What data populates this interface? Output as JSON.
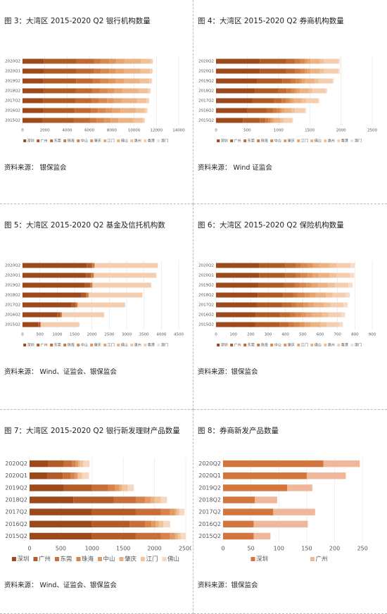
{
  "chart_data": [
    {
      "type": "bar",
      "title": "图 3：大湾区 2015-2020 Q2 银行机构数量",
      "source": "资料来源：  银保监会",
      "categories": [
        "2020Q2",
        "2020Q1",
        "2019Q2",
        "2018Q2",
        "2017Q2",
        "2016Q2",
        "2015Q2"
      ],
      "xlim": [
        0,
        14000
      ],
      "xticks": [
        0,
        2000,
        4000,
        6000,
        8000,
        10000,
        12000,
        14000
      ],
      "grid": true,
      "series": [
        {
          "name": "深圳",
          "color": "#9c4a1c",
          "values": [
            1900,
            1890,
            1880,
            1860,
            1850,
            1830,
            1800
          ]
        },
        {
          "name": "广州",
          "color": "#b05a26",
          "values": [
            2950,
            2940,
            2930,
            2900,
            2880,
            2850,
            2800
          ]
        },
        {
          "name": "东莞",
          "color": "#c06a32",
          "values": [
            1550,
            1540,
            1540,
            1520,
            1500,
            1480,
            1450
          ]
        },
        {
          "name": "珠海",
          "color": "#cc7a40",
          "values": [
            650,
            650,
            640,
            630,
            620,
            600,
            580
          ]
        },
        {
          "name": "中山",
          "color": "#d6884e",
          "values": [
            750,
            750,
            740,
            740,
            730,
            720,
            700
          ]
        },
        {
          "name": "肇庆",
          "color": "#de965e",
          "values": [
            600,
            600,
            600,
            590,
            580,
            570,
            560
          ]
        },
        {
          "name": "江门",
          "color": "#e5a470",
          "values": [
            750,
            750,
            750,
            740,
            730,
            720,
            700
          ]
        },
        {
          "name": "佛山",
          "color": "#ebb283",
          "values": [
            1450,
            1450,
            1440,
            1420,
            1400,
            1380,
            1350
          ]
        },
        {
          "name": "惠州",
          "color": "#f0c098",
          "values": [
            850,
            850,
            840,
            830,
            820,
            800,
            780
          ]
        },
        {
          "name": "香港",
          "color": "#f4ceb0",
          "values": [
            200,
            200,
            200,
            200,
            200,
            200,
            200
          ]
        },
        {
          "name": "澳门",
          "color": "#f8dccb",
          "values": [
            60,
            60,
            60,
            60,
            60,
            60,
            60
          ]
        }
      ]
    },
    {
      "type": "bar",
      "title": "图 4：大湾区 2015-2020 Q2 券商机构数量",
      "source": "资料来源：  Wind  证监会",
      "categories": [
        "2020Q2",
        "2020Q1",
        "2019Q2",
        "2018Q2",
        "2017Q2",
        "2016Q2",
        "2015Q2"
      ],
      "xlim": [
        0,
        2500
      ],
      "xticks": [
        0,
        500,
        1000,
        1500,
        2000,
        2500
      ],
      "grid": true,
      "series": [
        {
          "name": "深圳",
          "color": "#9c4a1c",
          "values": [
            700,
            700,
            660,
            620,
            580,
            500,
            430
          ]
        },
        {
          "name": "广州",
          "color": "#b05a26",
          "values": [
            420,
            420,
            400,
            380,
            350,
            310,
            270
          ]
        },
        {
          "name": "东莞",
          "color": "#c06a32",
          "values": [
            150,
            150,
            140,
            130,
            120,
            110,
            90
          ]
        },
        {
          "name": "珠海",
          "color": "#cc7a40",
          "values": [
            80,
            80,
            75,
            70,
            65,
            55,
            45
          ]
        },
        {
          "name": "中山",
          "color": "#d6884e",
          "values": [
            70,
            70,
            65,
            60,
            55,
            50,
            40
          ]
        },
        {
          "name": "肇庆",
          "color": "#de965e",
          "values": [
            40,
            40,
            38,
            36,
            34,
            30,
            25
          ]
        },
        {
          "name": "江门",
          "color": "#e5a470",
          "values": [
            50,
            50,
            48,
            45,
            42,
            38,
            32
          ]
        },
        {
          "name": "佛山",
          "color": "#ebb283",
          "values": [
            150,
            150,
            145,
            140,
            130,
            115,
            100
          ]
        },
        {
          "name": "惠州",
          "color": "#f0c098",
          "values": [
            70,
            70,
            68,
            65,
            60,
            55,
            48
          ]
        },
        {
          "name": "香港",
          "color": "#f4ceb0",
          "values": [
            230,
            230,
            225,
            215,
            200,
            160,
            140
          ]
        },
        {
          "name": "澳门",
          "color": "#f8dccb",
          "values": [
            20,
            20,
            20,
            19,
            18,
            17,
            15
          ]
        }
      ]
    },
    {
      "type": "bar",
      "title": "图 5：大湾区 2015-2020 Q2 基金及信托机构数",
      "source": "资料来源：    Wind、证监会、银保监会",
      "categories": [
        "2020Q2",
        "2020Q1",
        "2019Q2",
        "2018Q2",
        "2017Q2",
        "2016Q2",
        "2015Q2"
      ],
      "xlim": [
        0,
        4500
      ],
      "xticks": [
        0,
        500,
        1000,
        1500,
        2000,
        2500,
        3000,
        3500,
        4000,
        4500
      ],
      "grid": true,
      "series": [
        {
          "name": "深圳",
          "color": "#9c4a1c",
          "values": [
            1850,
            1830,
            1800,
            1700,
            1400,
            1000,
            450
          ]
        },
        {
          "name": "广州",
          "color": "#b05a26",
          "values": [
            150,
            150,
            145,
            140,
            130,
            100,
            60
          ]
        },
        {
          "name": "东莞",
          "color": "#c06a32",
          "values": [
            10,
            10,
            10,
            10,
            8,
            6,
            4
          ]
        },
        {
          "name": "珠海",
          "color": "#cc7a40",
          "values": [
            60,
            58,
            55,
            50,
            45,
            30,
            15
          ]
        },
        {
          "name": "中山",
          "color": "#d6884e",
          "values": [
            5,
            5,
            5,
            5,
            4,
            3,
            2
          ]
        },
        {
          "name": "肇庆",
          "color": "#de965e",
          "values": [
            2,
            2,
            2,
            2,
            2,
            1,
            1
          ]
        },
        {
          "name": "江门",
          "color": "#e5a470",
          "values": [
            3,
            3,
            3,
            3,
            2,
            2,
            1
          ]
        },
        {
          "name": "佛山",
          "color": "#ebb283",
          "values": [
            8,
            8,
            8,
            7,
            6,
            5,
            3
          ]
        },
        {
          "name": "惠州",
          "color": "#f0c098",
          "values": [
            3,
            3,
            3,
            3,
            3,
            2,
            1
          ]
        },
        {
          "name": "香港",
          "color": "#f4ceb0",
          "values": [
            1800,
            1780,
            1670,
            1530,
            1350,
            1200,
            1100
          ]
        },
        {
          "name": "澳门",
          "color": "#f8dccb",
          "values": [
            10,
            10,
            10,
            10,
            10,
            10,
            10
          ]
        }
      ]
    },
    {
      "type": "bar",
      "title": "图 6：大湾区 2015-2020 Q2 保险机构数量",
      "source": "资料来源：银保监会",
      "categories": [
        "2020Q2",
        "2020Q1",
        "2019Q2",
        "2018Q2",
        "2017Q2",
        "2016Q2",
        "2015Q2"
      ],
      "xlim": [
        0,
        900
      ],
      "xticks": [
        0,
        100,
        200,
        300,
        400,
        500,
        600,
        700,
        800,
        900
      ],
      "grid": true,
      "series": [
        {
          "name": "深圳",
          "color": "#9c4a1c",
          "values": [
            250,
            248,
            245,
            240,
            235,
            230,
            225
          ]
        },
        {
          "name": "广州",
          "color": "#b05a26",
          "values": [
            150,
            150,
            148,
            146,
            144,
            142,
            140
          ]
        },
        {
          "name": "东莞",
          "color": "#c06a32",
          "values": [
            60,
            60,
            59,
            58,
            57,
            56,
            55
          ]
        },
        {
          "name": "珠海",
          "color": "#cc7a40",
          "values": [
            30,
            30,
            30,
            29,
            29,
            28,
            28
          ]
        },
        {
          "name": "中山",
          "color": "#d6884e",
          "values": [
            40,
            40,
            40,
            39,
            38,
            38,
            37
          ]
        },
        {
          "name": "肇庆",
          "color": "#de965e",
          "values": [
            30,
            30,
            29,
            29,
            28,
            28,
            27
          ]
        },
        {
          "name": "江门",
          "color": "#e5a470",
          "values": [
            35,
            35,
            35,
            34,
            34,
            33,
            33
          ]
        },
        {
          "name": "佛山",
          "color": "#ebb283",
          "values": [
            60,
            60,
            59,
            58,
            57,
            56,
            55
          ]
        },
        {
          "name": "惠州",
          "color": "#f0c098",
          "values": [
            40,
            40,
            40,
            39,
            38,
            38,
            37
          ]
        },
        {
          "name": "香港",
          "color": "#f4ceb0",
          "values": [
            80,
            80,
            78,
            77,
            75,
            73,
            72
          ]
        },
        {
          "name": "澳门",
          "color": "#f8dccb",
          "values": [
            25,
            24,
            24,
            23,
            23,
            22,
            22
          ]
        }
      ]
    },
    {
      "type": "bar",
      "title": "图 7：大湾区 2015-2020 Q2 银行新发理财产品数量",
      "source": "资料来源：    Wind、证监会、银保监会",
      "categories": [
        "2020Q2",
        "2020Q1",
        "2019Q2",
        "2018Q2",
        "2017Q2",
        "2016Q2",
        "2015Q2"
      ],
      "xlim": [
        0,
        2500
      ],
      "xticks": [
        0,
        500,
        1000,
        1500,
        2000,
        2500
      ],
      "grid": true,
      "series": [
        {
          "name": "深圳",
          "color": "#9c4a1c",
          "values": [
            300,
            290,
            550,
            700,
            1000,
            1000,
            1000
          ]
        },
        {
          "name": "广州",
          "color": "#b45c28",
          "values": [
            250,
            240,
            450,
            650,
            700,
            600,
            700
          ]
        },
        {
          "name": "东莞",
          "color": "#c86e38",
          "values": [
            130,
            130,
            250,
            350,
            400,
            250,
            400
          ]
        },
        {
          "name": "珠海",
          "color": "#d6844c",
          "values": [
            60,
            60,
            120,
            150,
            150,
            100,
            150
          ]
        },
        {
          "name": "中山",
          "color": "#e09a64",
          "values": [
            40,
            40,
            70,
            90,
            80,
            70,
            80
          ]
        },
        {
          "name": "肇庆",
          "color": "#e9b07e",
          "values": [
            20,
            20,
            40,
            60,
            30,
            50,
            40
          ]
        },
        {
          "name": "江门",
          "color": "#f0c49c",
          "values": [
            60,
            60,
            90,
            100,
            40,
            70,
            50
          ]
        },
        {
          "name": "佛山",
          "color": "#f6d8c2",
          "values": [
            100,
            110,
            100,
            100,
            80,
            110,
            80
          ]
        }
      ]
    },
    {
      "type": "bar",
      "title": "图 8：券商新发产品数量",
      "source": "资料来源：银保监会",
      "categories": [
        "2020Q2",
        "2020Q1",
        "2019Q2",
        "2018Q2",
        "2017Q2",
        "2016Q2",
        "2015Q2"
      ],
      "xlim": [
        0,
        280
      ],
      "xticks": [
        0,
        50,
        100,
        150,
        200,
        250
      ],
      "grid": true,
      "series": [
        {
          "name": "深圳",
          "color": "#d2763e",
          "values": [
            180,
            150,
            115,
            57,
            90,
            55,
            55
          ]
        },
        {
          "name": "广州",
          "color": "#f0b89a",
          "values": [
            65,
            70,
            45,
            40,
            75,
            97,
            30
          ]
        }
      ]
    }
  ]
}
